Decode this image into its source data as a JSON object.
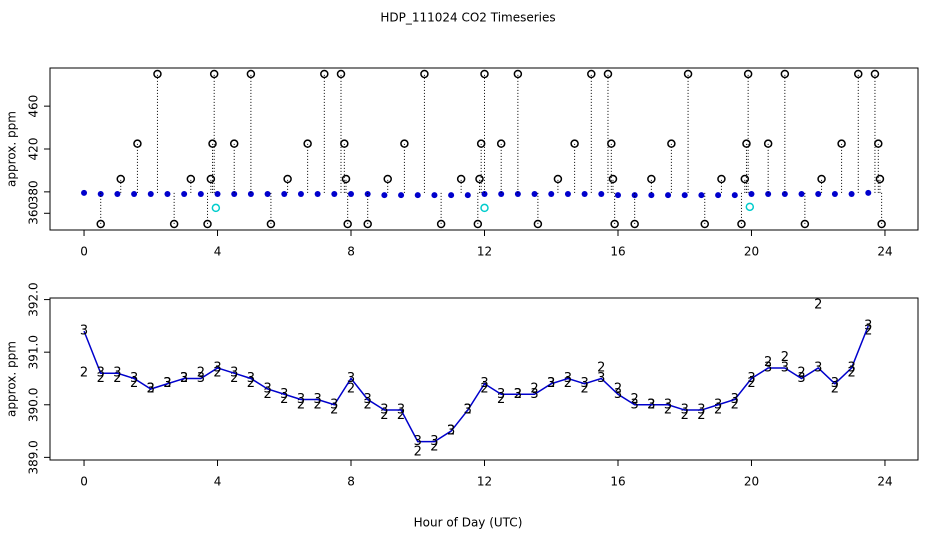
{
  "chart_data": [
    {
      "type": "scatter",
      "title": "HDP_111024  CO2 Timeseries",
      "y_label": "approx. ppm",
      "xlim": [
        -1.02,
        24.99
      ],
      "ylim": [
        344.4,
        495.6
      ],
      "xticks": [
        0,
        4,
        8,
        12,
        16,
        20,
        24
      ],
      "yticks": [
        360,
        380,
        420,
        460
      ],
      "series": [
        {
          "color": "#0000cc",
          "marker": "dot",
          "x": [
            0,
            0.5,
            1,
            1.5,
            2,
            2.5,
            3,
            3.5,
            4,
            4.5,
            5,
            5.5,
            6,
            6.5,
            7,
            7.5,
            8,
            8.5,
            9,
            9.5,
            10,
            10.5,
            11,
            11.5,
            12,
            12.5,
            13,
            13.5,
            14,
            14.5,
            15,
            15.5,
            16,
            16.5,
            17,
            17.5,
            18,
            18.5,
            19,
            19.5,
            20,
            20.5,
            21,
            21.5,
            22,
            22.5,
            23,
            23.5
          ],
          "values": [
            379,
            378,
            378,
            378,
            378,
            378,
            378,
            378,
            378,
            378,
            378,
            378,
            378,
            378,
            378,
            378,
            378,
            378,
            377,
            377,
            377,
            377,
            377,
            377,
            378,
            378,
            378,
            378,
            378,
            378,
            378,
            378,
            377,
            377,
            377,
            377,
            377,
            377,
            377,
            377,
            378,
            378,
            378,
            378,
            378,
            378,
            378,
            379
          ]
        },
        {
          "color": "#00cccc",
          "marker": "circle",
          "x": [
            3.95,
            12.0,
            19.95
          ],
          "values": [
            365,
            365,
            366
          ]
        },
        {
          "color": "#000000",
          "marker": "circle",
          "drop": true,
          "x": [
            0.5,
            1.1,
            1.6,
            2.2,
            2.7,
            3.2,
            3.7,
            3.8,
            3.85,
            3.9,
            4.5,
            5.0,
            5.6,
            6.1,
            6.7,
            7.2,
            7.7,
            7.8,
            7.85,
            7.9,
            8.5,
            9.1,
            9.6,
            10.2,
            10.7,
            11.3,
            11.8,
            11.85,
            11.9,
            12.0,
            12.5,
            13.0,
            13.6,
            14.2,
            14.7,
            15.2,
            15.7,
            15.8,
            15.85,
            15.9,
            16.5,
            17.0,
            17.6,
            18.1,
            18.6,
            19.1,
            19.7,
            19.8,
            19.85,
            19.9,
            20.5,
            21.0,
            21.6,
            22.1,
            22.7,
            23.2,
            23.7,
            23.8,
            23.85,
            23.9
          ],
          "values": [
            350,
            392,
            425,
            490,
            350,
            392,
            350,
            392,
            425,
            490,
            425,
            490,
            350,
            392,
            425,
            490,
            490,
            425,
            392,
            350,
            350,
            392,
            425,
            490,
            350,
            392,
            350,
            392,
            425,
            490,
            425,
            490,
            350,
            392,
            425,
            490,
            490,
            425,
            392,
            350,
            350,
            392,
            425,
            490,
            350,
            392,
            350,
            392,
            425,
            490,
            425,
            490,
            350,
            392,
            425,
            490,
            490,
            425,
            392,
            350
          ]
        }
      ]
    },
    {
      "type": "scatter",
      "y_label": "approx. ppm",
      "x_label": "Hour of Day (UTC)",
      "xlim": [
        -1.02,
        24.99
      ],
      "ylim": [
        388.95,
        392.03
      ],
      "xticks": [
        0,
        4,
        8,
        12,
        16,
        20,
        24
      ],
      "yticks": [
        {
          "value": 389,
          "label": "389.0"
        },
        {
          "value": 390,
          "label": "390.0"
        },
        {
          "value": 391,
          "label": "391.0"
        },
        {
          "value": 392,
          "label": "392.0"
        }
      ],
      "series": [
        {
          "color": "#00aa00",
          "pch": "2",
          "x": [
            0,
            0.5,
            1,
            1.5,
            2,
            2.5,
            3,
            3.5,
            4,
            4.5,
            5,
            5.5,
            6,
            6.5,
            7,
            7.5,
            8,
            8.5,
            9,
            9.5,
            10,
            10.5,
            11,
            11.5,
            12,
            12.5,
            13,
            13.5,
            14,
            14.5,
            15,
            15.5,
            16,
            16.5,
            17,
            17.5,
            18,
            18.5,
            19,
            19.5,
            20,
            20.5,
            21,
            21.5,
            22,
            22.5,
            23,
            23.5
          ],
          "values": [
            390.6,
            390.5,
            390.5,
            390.4,
            390.3,
            390.4,
            390.5,
            390.6,
            390.6,
            390.5,
            390.4,
            390.2,
            390.1,
            390.0,
            390.0,
            389.9,
            390.3,
            390.0,
            389.8,
            389.8,
            389.1,
            389.2,
            389.5,
            389.9,
            390.3,
            390.1,
            390.2,
            390.3,
            390.4,
            390.4,
            390.3,
            390.7,
            390.3,
            390.1,
            390.0,
            389.9,
            389.8,
            389.8,
            389.9,
            390.0,
            390.4,
            390.8,
            390.9,
            390.6,
            391.9,
            390.3,
            390.6,
            391.4
          ]
        },
        {
          "color": "#0000cc",
          "pch": "3",
          "line": true,
          "x": [
            0,
            0.5,
            1,
            1.5,
            2,
            2.5,
            3,
            3.5,
            4,
            4.5,
            5,
            5.5,
            6,
            6.5,
            7,
            7.5,
            8,
            8.5,
            9,
            9.5,
            10,
            10.5,
            11,
            11.5,
            12,
            12.5,
            13,
            13.5,
            14,
            14.5,
            15,
            15.5,
            16,
            16.5,
            17,
            17.5,
            18,
            18.5,
            19,
            19.5,
            20,
            20.5,
            21,
            21.5,
            22,
            22.5,
            23,
            23.5
          ],
          "values": [
            391.4,
            390.6,
            390.6,
            390.5,
            390.3,
            390.4,
            390.5,
            390.5,
            390.7,
            390.6,
            390.5,
            390.3,
            390.2,
            390.1,
            390.1,
            390.0,
            390.5,
            390.1,
            389.9,
            389.9,
            389.3,
            389.3,
            389.5,
            389.9,
            390.4,
            390.2,
            390.2,
            390.2,
            390.4,
            390.5,
            390.4,
            390.5,
            390.2,
            390.0,
            390.0,
            390.0,
            389.9,
            389.9,
            390.0,
            390.1,
            390.5,
            390.7,
            390.7,
            390.5,
            390.7,
            390.4,
            390.7,
            391.5
          ]
        }
      ]
    }
  ]
}
